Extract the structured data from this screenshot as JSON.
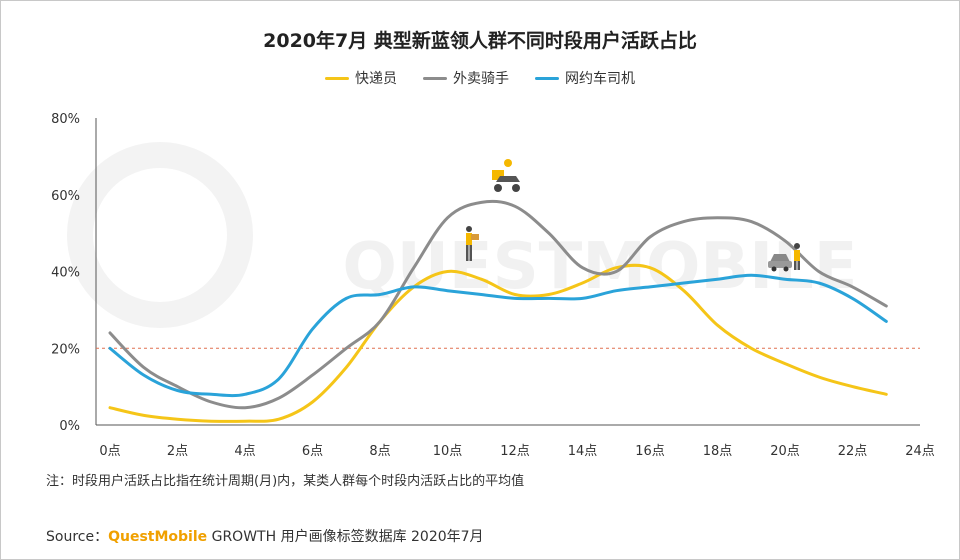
{
  "title": "2020年7月 典型新蓝领人群不同时段用户活跃占比",
  "legend": [
    {
      "label": "快递员",
      "color": "#f5c518"
    },
    {
      "label": "外卖骑手",
      "color": "#8c8c8c"
    },
    {
      "label": "网约车司机",
      "color": "#2aa3d9"
    }
  ],
  "watermark": "QUESTMOBILE",
  "note": "注：时段用户活跃占比指在统计周期(月)内，某类人群每个时段内活跃占比的平均值",
  "source": {
    "prefix": "Source：",
    "brand": "QuestMobile",
    "suffix": " GROWTH 用户画像标签数据库 2020年7月"
  },
  "chart_data": {
    "type": "line",
    "x": [
      0,
      1,
      2,
      3,
      4,
      5,
      6,
      7,
      8,
      9,
      10,
      11,
      12,
      13,
      14,
      15,
      16,
      17,
      18,
      19,
      20,
      21,
      22,
      23
    ],
    "x_ticks": [
      "0点",
      "2点",
      "4点",
      "6点",
      "8点",
      "10点",
      "12点",
      "14点",
      "16点",
      "18点",
      "20点",
      "22点",
      "24点"
    ],
    "y_ticks": [
      "0%",
      "20%",
      "40%",
      "60%",
      "80%"
    ],
    "ylim": [
      0,
      80
    ],
    "reference_line": {
      "value": 20,
      "color": "#e07050"
    },
    "series": [
      {
        "name": "快递员",
        "color": "#f5c518",
        "values": [
          4.5,
          2.5,
          1.5,
          1.0,
          1.0,
          1.5,
          6,
          15,
          27,
          36,
          40,
          38,
          34,
          34,
          37,
          41,
          41,
          35,
          26,
          20,
          16,
          12.5,
          10,
          8
        ]
      },
      {
        "name": "外卖骑手",
        "color": "#8c8c8c",
        "values": [
          24,
          15,
          10,
          6,
          4.5,
          7,
          13,
          20,
          27,
          41,
          54,
          58,
          57,
          50,
          41,
          40,
          49,
          53,
          54,
          53,
          48,
          40,
          36,
          31
        ]
      },
      {
        "name": "网约车司机",
        "color": "#2aa3d9",
        "values": [
          20,
          13,
          9,
          8,
          8,
          12,
          25,
          33,
          34,
          36,
          35,
          34,
          33,
          33,
          33,
          35,
          36,
          37,
          38,
          39,
          38,
          37,
          33,
          27
        ]
      }
    ]
  }
}
